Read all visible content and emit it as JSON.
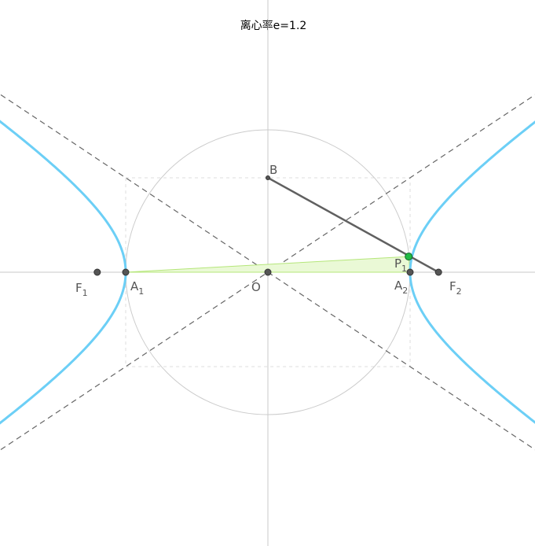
{
  "title": "离心率e=1.2",
  "colors": {
    "hyperbola": "#6ccff6",
    "asymptote": "#666666",
    "axis": "#c8c8c8",
    "circle": "#cccccc",
    "box": "#dddddd",
    "segment": "#606060",
    "triangle_fill": "#eaf9d6",
    "triangle_stroke": "#b5e67a",
    "point": "#555555",
    "p1_fill": "#22bb44",
    "p1_label": "#1e9e3a"
  },
  "geometry": {
    "a": 1,
    "b": 0.6633,
    "c": 1.2,
    "eccentricity": 1.2
  },
  "points": {
    "F1": {
      "label": "F",
      "sub": "1",
      "x": -1.2,
      "y": 0
    },
    "A1": {
      "label": "A",
      "sub": "1",
      "x": -1,
      "y": 0
    },
    "O": {
      "label": "O",
      "sub": "",
      "x": 0,
      "y": 0
    },
    "A2": {
      "label": "A",
      "sub": "2",
      "x": 1,
      "y": 0
    },
    "F2": {
      "label": "F",
      "sub": "2",
      "x": 1.2,
      "y": 0
    },
    "B": {
      "label": "B",
      "sub": "",
      "x": 0,
      "y": 0.6633
    },
    "P1": {
      "label": "P",
      "sub": "1",
      "x": 0.99,
      "y": 0.11
    }
  }
}
